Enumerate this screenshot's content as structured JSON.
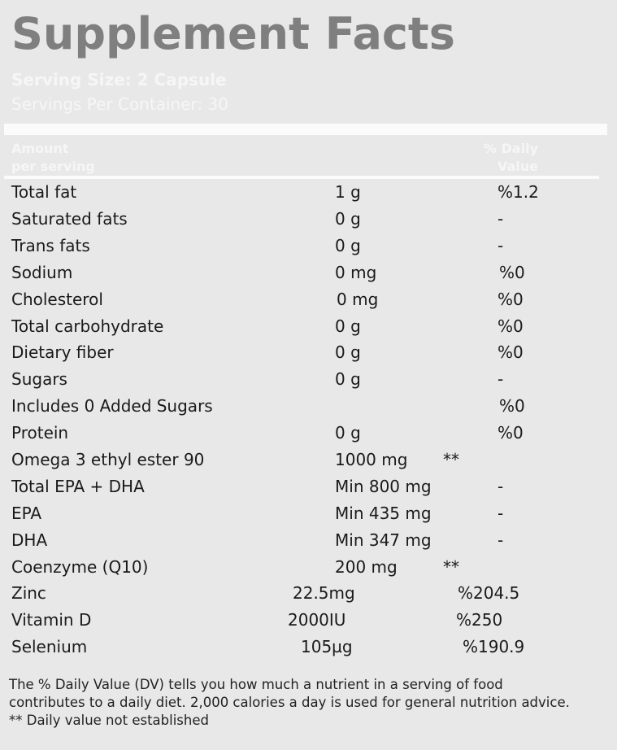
{
  "title": "Supplement Facts",
  "serving_size": "Serving Size: 2 Capsule",
  "servings_per_container": "Servings Per Container: 30",
  "header": {
    "amount_line1": "Amount",
    "amount_line2": "per serving",
    "dv_line1": "% Daily",
    "dv_line2": "Value"
  },
  "rows": [
    {
      "name": "Total fat",
      "amount": "1 g",
      "dv": "%1.2"
    },
    {
      "name": "Saturated fats",
      "amount": "0 g",
      "dv": "-"
    },
    {
      "name": "Trans fats",
      "amount": "0 g",
      "dv": "-"
    },
    {
      "name": "Sodium",
      "amount": "0 mg",
      "dv": "%0"
    },
    {
      "name": "Cholesterol",
      "amount": "0 mg",
      "dv": "%0"
    },
    {
      "name": "Total carbohydrate",
      "amount": "0 g",
      "dv": "%0"
    },
    {
      "name": "Dietary fiber",
      "amount": "0 g",
      "dv": "%0"
    },
    {
      "name": "Sugars",
      "amount": "0 g",
      "dv": "-"
    },
    {
      "name": "Includes 0 Added Sugars",
      "amount": "",
      "dv": "%0"
    },
    {
      "name": "Protein",
      "amount": "0 g",
      "dv": "%0"
    },
    {
      "name": "Omega 3 ethyl ester 90",
      "amount": "1000 mg",
      "dv": "**"
    },
    {
      "name": "Total EPA + DHA",
      "amount": "Min 800 mg",
      "dv": "-"
    },
    {
      "name": "EPA",
      "amount": "Min 435 mg",
      "dv": "-"
    },
    {
      "name": "DHA",
      "amount": "Min 347 mg",
      "dv": "-"
    },
    {
      "name": "Coenzyme (Q10)",
      "amount": "200 mg",
      "dv": "**"
    },
    {
      "name": "Zinc",
      "amount": "22.5mg",
      "dv": "%204.5"
    },
    {
      "name": "Vitamin D",
      "amount": "2000IU",
      "dv": "%250"
    },
    {
      "name": "Selenium",
      "amount": "105µg",
      "dv": "%190.9"
    }
  ],
  "footnote": {
    "line1": "The % Daily Value (DV) tells you how much a nutrient in a serving of food",
    "line2": "contributes to a daily diet. 2,000 calories a day is used for general nutrition advice.",
    "line3": "** Daily value not established"
  }
}
